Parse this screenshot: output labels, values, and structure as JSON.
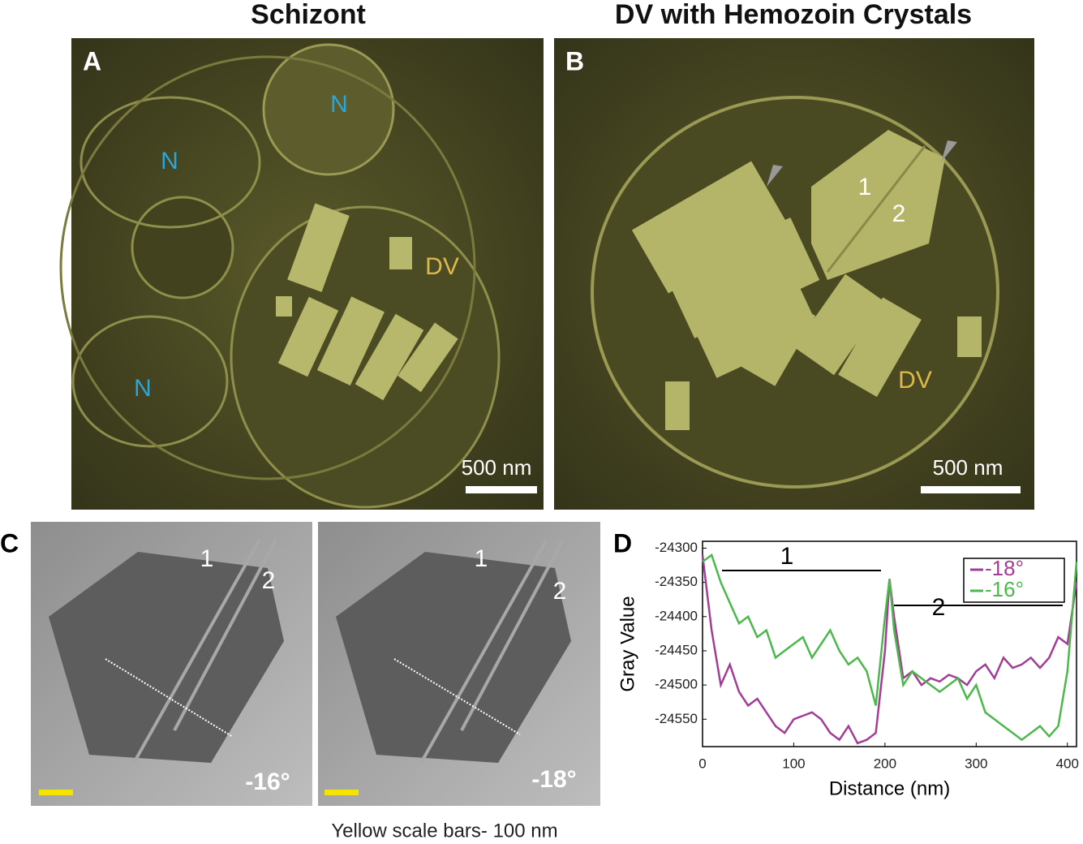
{
  "figure": {
    "titles": [
      "Schizont",
      "DV with Hemozoin Crystals"
    ],
    "panel_a": {
      "label": "A",
      "annotations": [
        "N",
        "N",
        "N",
        "DV"
      ],
      "scale_bar": "500 nm"
    },
    "panel_b": {
      "label": "B",
      "annotations": [
        "1",
        "2",
        "DV"
      ],
      "scale_bar": "500 nm"
    },
    "panel_c": {
      "label": "C",
      "images": [
        {
          "annotations": [
            "1",
            "2"
          ],
          "angle": "-16°"
        },
        {
          "annotations": [
            "1",
            "2"
          ],
          "angle": "-18°"
        }
      ],
      "caption": "Yellow scale bars- 100 nm"
    },
    "panel_d": {
      "label": "D"
    }
  },
  "chart_data": {
    "type": "line",
    "xlabel": "Distance (nm)",
    "ylabel": "Gray Value",
    "x": [
      0,
      10,
      20,
      30,
      40,
      50,
      60,
      70,
      80,
      90,
      100,
      110,
      120,
      130,
      140,
      150,
      160,
      170,
      180,
      190,
      200,
      205,
      210,
      220,
      230,
      240,
      250,
      260,
      270,
      280,
      290,
      300,
      310,
      320,
      330,
      340,
      350,
      360,
      370,
      380,
      390,
      400,
      410
    ],
    "series": [
      {
        "name": "-18°",
        "color": "#a13d97",
        "values": [
          -24310,
          -24420,
          -24500,
          -24470,
          -24510,
          -24530,
          -24520,
          -24540,
          -24560,
          -24570,
          -24550,
          -24545,
          -24540,
          -24550,
          -24570,
          -24580,
          -24560,
          -24585,
          -24580,
          -24570,
          -24450,
          -24345,
          -24400,
          -24490,
          -24480,
          -24500,
          -24490,
          -24495,
          -24485,
          -24490,
          -24500,
          -24480,
          -24470,
          -24490,
          -24460,
          -24475,
          -24470,
          -24460,
          -24475,
          -24460,
          -24430,
          -24440,
          -24350
        ]
      },
      {
        "name": "-16°",
        "color": "#4cb84c",
        "values": [
          -24320,
          -24310,
          -24350,
          -24380,
          -24410,
          -24400,
          -24430,
          -24420,
          -24460,
          -24450,
          -24440,
          -24430,
          -24460,
          -24440,
          -24420,
          -24450,
          -24470,
          -24460,
          -24480,
          -24530,
          -24400,
          -24345,
          -24420,
          -24500,
          -24480,
          -24490,
          -24500,
          -24510,
          -24500,
          -24490,
          -24520,
          -24500,
          -24540,
          -24550,
          -24560,
          -24570,
          -24580,
          -24570,
          -24560,
          -24575,
          -24560,
          -24480,
          -24320
        ]
      }
    ],
    "annotations": [
      "1",
      "2"
    ],
    "xlim": [
      0,
      410
    ],
    "ylim": [
      -24590,
      -24290
    ],
    "xticks": [
      0,
      100,
      200,
      300,
      400
    ],
    "yticks": [
      -24300,
      -24350,
      -24400,
      -24450,
      -24500,
      -24550
    ],
    "legend": "upper right"
  }
}
